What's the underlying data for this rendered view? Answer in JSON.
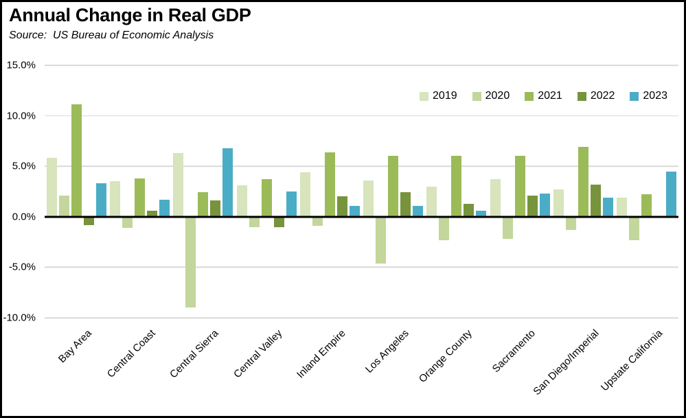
{
  "header": {
    "title": "Annual Change in Real GDP",
    "source": "Source:  US Bureau of Economic Analysis"
  },
  "chart_data": {
    "type": "bar",
    "title": "Annual Change in Real GDP",
    "source": "US Bureau of Economic Analysis",
    "categories": [
      "Bay Area",
      "Central Coast",
      "Central Sierra",
      "Central Valley",
      "Inland Empire",
      "Los Angeles",
      "Orange County",
      "Sacramento",
      "San Diego/Imperial",
      "Upstate California"
    ],
    "series": [
      {
        "name": "2019",
        "color": "#d7e4bc",
        "values": [
          5.8,
          3.5,
          6.3,
          3.1,
          4.4,
          3.6,
          3.0,
          3.7,
          2.7,
          1.9
        ]
      },
      {
        "name": "2020",
        "color": "#c3d69b",
        "values": [
          2.1,
          -1.0,
          -8.9,
          -0.9,
          -0.8,
          -4.5,
          -2.2,
          -2.1,
          -1.2,
          -2.2
        ]
      },
      {
        "name": "2021",
        "color": "#9bbb59",
        "values": [
          11.1,
          3.8,
          2.4,
          3.7,
          6.4,
          6.0,
          6.0,
          6.0,
          6.9,
          2.2
        ]
      },
      {
        "name": "2022",
        "color": "#77933c",
        "values": [
          -0.7,
          0.6,
          1.6,
          -0.9,
          2.0,
          2.4,
          1.3,
          2.1,
          3.2,
          0.0
        ]
      },
      {
        "name": "2023",
        "color": "#4bacc6",
        "values": [
          3.3,
          1.7,
          6.8,
          2.5,
          1.1,
          1.1,
          0.6,
          2.3,
          1.9,
          4.5
        ]
      }
    ],
    "ylim": [
      -10,
      15
    ],
    "ytick_step": 5,
    "yticks": [
      {
        "value": 15,
        "label": "15.0%"
      },
      {
        "value": 10,
        "label": "10.0%"
      },
      {
        "value": 5,
        "label": "5.0%"
      },
      {
        "value": 0,
        "label": "0.0%"
      },
      {
        "value": -5,
        "label": "-5.0%"
      },
      {
        "value": -10,
        "label": "-10.0%"
      }
    ],
    "grid": true,
    "gridline_color": "#d9d9d9",
    "zero_line_color": "#000000",
    "legend_position": "inside-top-right",
    "xlabel": "",
    "ylabel": ""
  }
}
